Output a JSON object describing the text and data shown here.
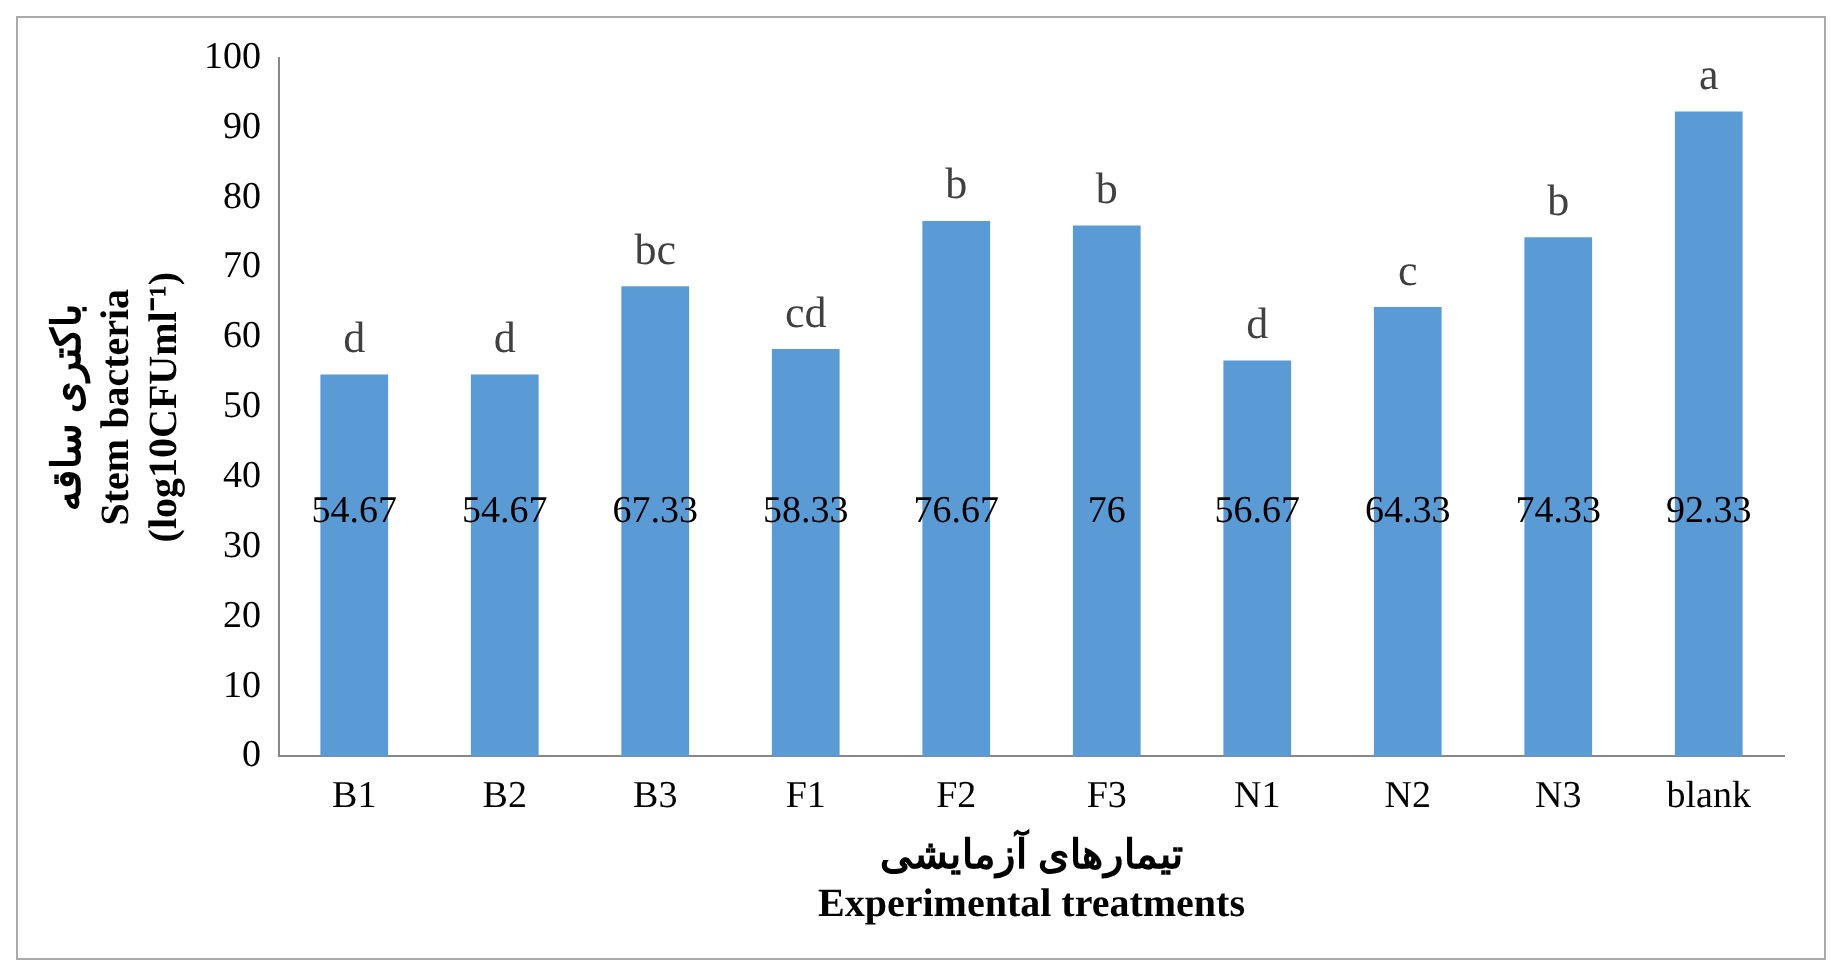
{
  "chart_data": {
    "type": "bar",
    "xlabel": "تیمارهای آزمایشی\nExperimental treatments",
    "ylabel": "باکتری ساقه\nStem bacteria\n(log10CFUml⁻¹)",
    "categories": [
      "B1",
      "B2",
      "B3",
      "F1",
      "F2",
      "F3",
      "N1",
      "N2",
      "N3",
      "blank"
    ],
    "values": [
      54.67,
      54.67,
      67.33,
      58.33,
      76.67,
      76,
      56.67,
      64.33,
      74.33,
      92.33
    ],
    "color": "#5b9bd5",
    "ylim": [
      0,
      100
    ],
    "yticks": [
      0,
      10,
      20,
      30,
      40,
      50,
      60,
      70,
      80,
      90,
      100
    ],
    "grid": false,
    "legend": false,
    "data_labels": true,
    "annotations": [
      {
        "text": "d",
        "x": "B1",
        "y": 54.67
      },
      {
        "text": "d",
        "x": "B2",
        "y": 54.67
      },
      {
        "text": "bc",
        "x": "B3",
        "y": 67.33
      },
      {
        "text": "cd",
        "x": "F1",
        "y": 58.33
      },
      {
        "text": "b",
        "x": "F2",
        "y": 76.67
      },
      {
        "text": "b",
        "x": "F3",
        "y": 76
      },
      {
        "text": "d",
        "x": "N1",
        "y": 56.67
      },
      {
        "text": "c",
        "x": "N2",
        "y": 64.33
      },
      {
        "text": "b",
        "x": "N3",
        "y": 74.33
      },
      {
        "text": "a",
        "x": "blank",
        "y": 92.33
      }
    ]
  }
}
